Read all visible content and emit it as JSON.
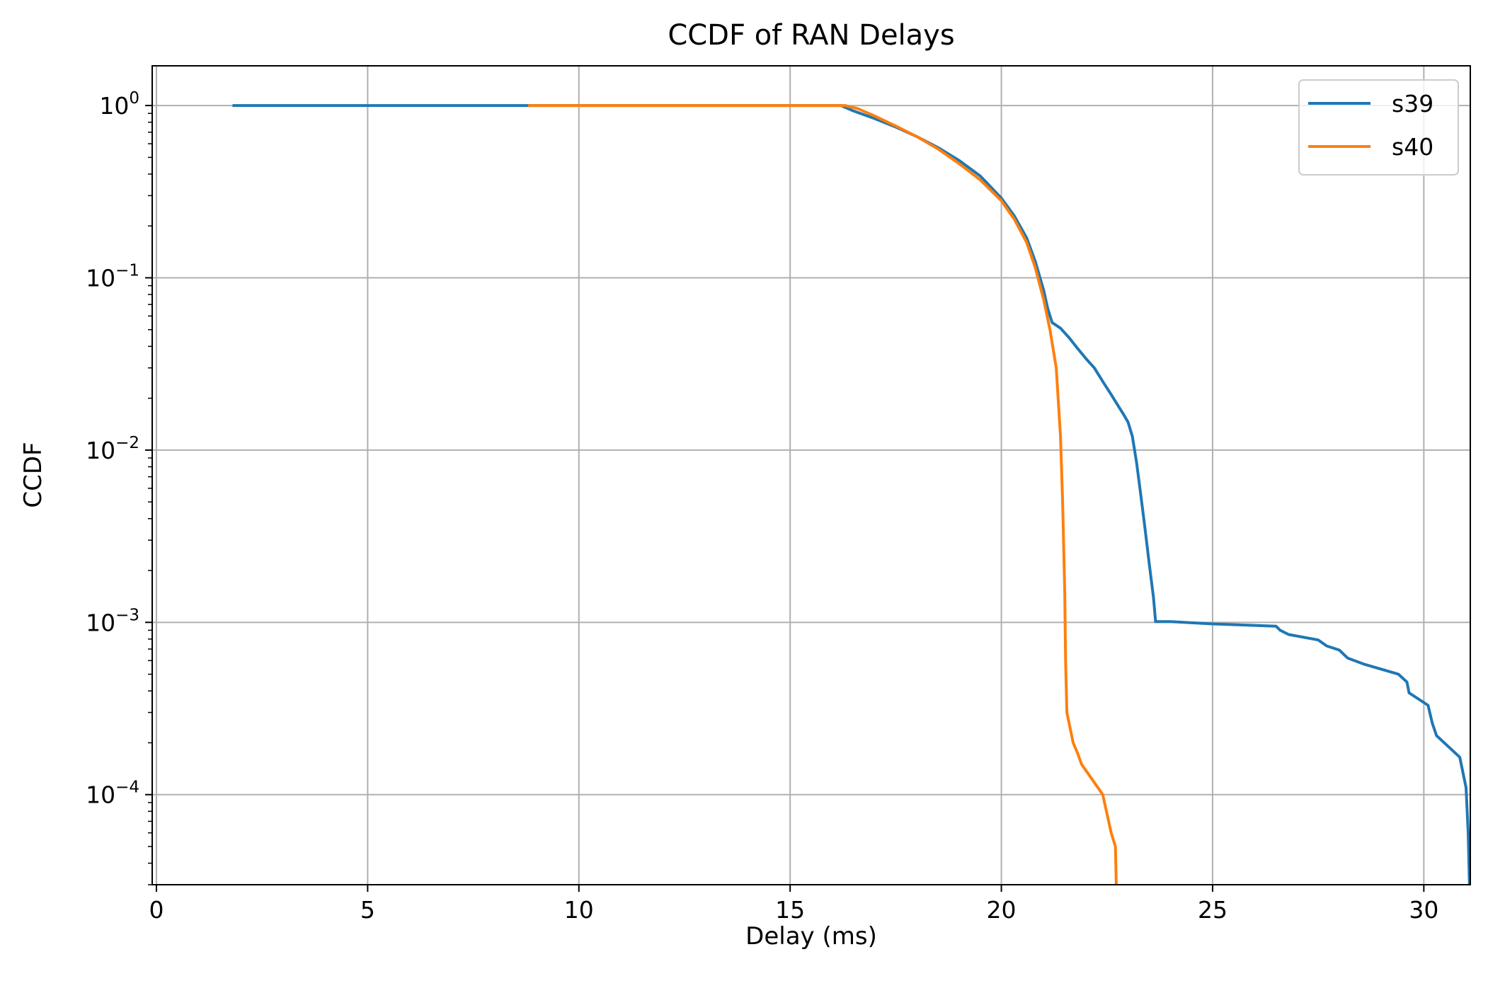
{
  "chart_data": {
    "type": "line",
    "title": "CCDF of RAN Delays",
    "xlabel": "Delay (ms)",
    "ylabel": "CCDF",
    "xlim": [
      -0.1,
      31.1
    ],
    "ylim": [
      3e-05,
      1.7
    ],
    "yscale": "log",
    "grid": true,
    "legend_position": "top-right",
    "x_ticks": [
      {
        "value": 0,
        "label": "0"
      },
      {
        "value": 5,
        "label": "5"
      },
      {
        "value": 10,
        "label": "10"
      },
      {
        "value": 15,
        "label": "15"
      },
      {
        "value": 20,
        "label": "20"
      },
      {
        "value": 25,
        "label": "25"
      },
      {
        "value": 30,
        "label": "30"
      }
    ],
    "y_ticks": [
      {
        "value": 1,
        "base": "10",
        "exp": "0"
      },
      {
        "value": 0.1,
        "base": "10",
        "exp": "−1"
      },
      {
        "value": 0.01,
        "base": "10",
        "exp": "−2"
      },
      {
        "value": 0.001,
        "base": "10",
        "exp": "−3"
      },
      {
        "value": 0.0001,
        "base": "10",
        "exp": "−4"
      }
    ],
    "series": [
      {
        "name": "s39",
        "color": "#1f77b4",
        "points": [
          [
            1.8,
            1.0
          ],
          [
            16.2,
            1.0
          ],
          [
            16.5,
            0.93
          ],
          [
            17.0,
            0.84
          ],
          [
            17.5,
            0.75
          ],
          [
            18.0,
            0.66
          ],
          [
            18.5,
            0.57
          ],
          [
            19.0,
            0.48
          ],
          [
            19.5,
            0.39
          ],
          [
            20.0,
            0.29
          ],
          [
            20.3,
            0.23
          ],
          [
            20.6,
            0.17
          ],
          [
            20.8,
            0.125
          ],
          [
            21.0,
            0.085
          ],
          [
            21.1,
            0.066
          ],
          [
            21.2,
            0.055
          ],
          [
            21.4,
            0.051
          ],
          [
            21.6,
            0.045
          ],
          [
            21.8,
            0.039
          ],
          [
            22.0,
            0.034
          ],
          [
            22.2,
            0.03
          ],
          [
            22.4,
            0.025
          ],
          [
            22.6,
            0.021
          ],
          [
            22.8,
            0.0175
          ],
          [
            22.9,
            0.016
          ],
          [
            23.0,
            0.0145
          ],
          [
            23.1,
            0.012
          ],
          [
            23.2,
            0.0085
          ],
          [
            23.3,
            0.0055
          ],
          [
            23.4,
            0.0035
          ],
          [
            23.5,
            0.0022
          ],
          [
            23.6,
            0.0014
          ],
          [
            23.65,
            0.00101
          ],
          [
            24.0,
            0.00101
          ],
          [
            25.0,
            0.00098
          ],
          [
            26.5,
            0.00095
          ],
          [
            26.6,
            0.0009
          ],
          [
            26.8,
            0.00085
          ],
          [
            27.5,
            0.00079
          ],
          [
            27.7,
            0.00073
          ],
          [
            28.0,
            0.00069
          ],
          [
            28.2,
            0.00062
          ],
          [
            28.6,
            0.00057
          ],
          [
            29.4,
            0.0005
          ],
          [
            29.6,
            0.00045
          ],
          [
            29.65,
            0.00039
          ],
          [
            30.1,
            0.00033
          ],
          [
            30.2,
            0.00026
          ],
          [
            30.3,
            0.00022
          ],
          [
            30.85,
            0.000165
          ],
          [
            31.0,
            0.00011
          ],
          [
            31.05,
            6e-05
          ],
          [
            31.08,
            3e-05
          ]
        ]
      },
      {
        "name": "s40",
        "color": "#ff7f0e",
        "points": [
          [
            8.8,
            1.0
          ],
          [
            16.3,
            1.0
          ],
          [
            16.6,
            0.96
          ],
          [
            17.0,
            0.87
          ],
          [
            17.5,
            0.76
          ],
          [
            18.0,
            0.66
          ],
          [
            18.5,
            0.56
          ],
          [
            19.0,
            0.46
          ],
          [
            19.5,
            0.37
          ],
          [
            20.0,
            0.28
          ],
          [
            20.3,
            0.22
          ],
          [
            20.6,
            0.16
          ],
          [
            20.8,
            0.115
          ],
          [
            21.0,
            0.075
          ],
          [
            21.15,
            0.05
          ],
          [
            21.3,
            0.03
          ],
          [
            21.4,
            0.012
          ],
          [
            21.45,
            0.005
          ],
          [
            21.5,
            0.0015
          ],
          [
            21.52,
            0.0006
          ],
          [
            21.55,
            0.0003
          ],
          [
            21.7,
            0.0002
          ],
          [
            21.8,
            0.000175
          ],
          [
            21.9,
            0.00015
          ],
          [
            22.4,
            0.0001
          ],
          [
            22.6,
            6e-05
          ],
          [
            22.7,
            5e-05
          ],
          [
            22.72,
            3e-05
          ]
        ]
      }
    ]
  }
}
